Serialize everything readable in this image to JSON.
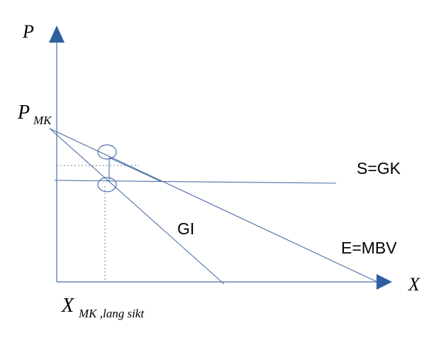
{
  "diagram": {
    "axes": {
      "y_label": "P",
      "x_label": "X"
    },
    "price_label": {
      "main": "P",
      "sub": "MK"
    },
    "quantity_label": {
      "main": "X",
      "sub": "MK ,lang sikt"
    },
    "curves": {
      "supply": "S=GK",
      "demand": "E=MBV",
      "marginal": "GI"
    },
    "colors": {
      "line": "#4a6fa5",
      "axis_arrow": "#2e5f9e",
      "text": "#000000"
    }
  }
}
